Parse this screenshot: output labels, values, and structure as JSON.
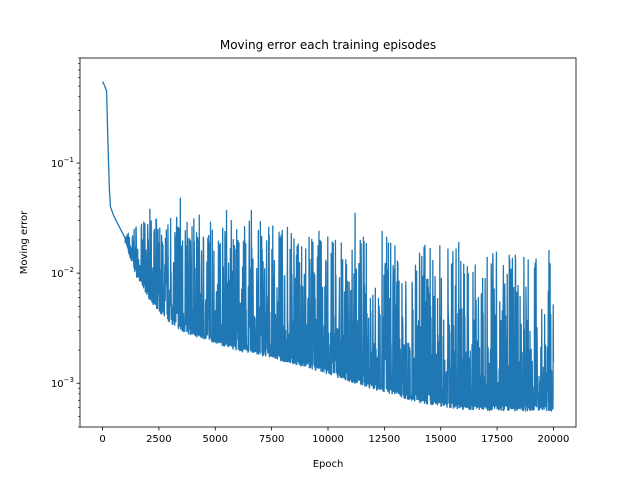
{
  "chart_data": {
    "type": "line",
    "title": "Moving error each training episodes",
    "xlabel": "Epoch",
    "ylabel": "Moving error",
    "y_scale": "log",
    "grid": false,
    "legend": "none",
    "xlim": [
      -1000,
      21000
    ],
    "ylim": [
      0.0004,
      0.9
    ],
    "x_ticks": [
      0,
      2500,
      5000,
      7500,
      10000,
      12500,
      15000,
      17500,
      20000
    ],
    "y_ticks": [
      {
        "value": 0.001,
        "base": "10",
        "exp": "−3"
      },
      {
        "value": 0.01,
        "base": "10",
        "exp": "−2"
      },
      {
        "value": 0.1,
        "base": "10",
        "exp": "−1"
      }
    ],
    "series": [
      {
        "color": "#1f77b4",
        "baseline": [
          [
            0,
            0.55
          ],
          [
            100,
            0.5
          ],
          [
            180,
            0.45
          ],
          [
            230,
            0.18
          ],
          [
            300,
            0.06
          ],
          [
            350,
            0.04
          ],
          [
            500,
            0.033
          ],
          [
            800,
            0.025
          ],
          [
            1000,
            0.02
          ],
          [
            1200,
            0.015
          ],
          [
            1500,
            0.01
          ],
          [
            2000,
            0.0065
          ],
          [
            2500,
            0.0048
          ],
          [
            3000,
            0.0038
          ],
          [
            3500,
            0.0032
          ],
          [
            4000,
            0.0029
          ],
          [
            5000,
            0.0025
          ],
          [
            6000,
            0.0021
          ],
          [
            7000,
            0.0019
          ],
          [
            8000,
            0.0017
          ],
          [
            9000,
            0.0015
          ],
          [
            10000,
            0.0013
          ],
          [
            11000,
            0.0011
          ],
          [
            12000,
            0.00095
          ],
          [
            13000,
            0.00082
          ],
          [
            14000,
            0.00072
          ],
          [
            15000,
            0.00066
          ],
          [
            16000,
            0.00062
          ],
          [
            17000,
            0.00061
          ],
          [
            18000,
            0.0006
          ],
          [
            19000,
            0.0006
          ],
          [
            20000,
            0.0006
          ]
        ],
        "envelope": [
          [
            1000,
            0.022
          ],
          [
            1500,
            0.028
          ],
          [
            2000,
            0.03
          ],
          [
            2500,
            0.032
          ],
          [
            3000,
            0.033
          ],
          [
            3500,
            0.034
          ],
          [
            4000,
            0.034
          ],
          [
            5000,
            0.033
          ],
          [
            6000,
            0.032
          ],
          [
            7000,
            0.03
          ],
          [
            8000,
            0.025
          ],
          [
            9000,
            0.024
          ],
          [
            10000,
            0.023
          ],
          [
            11000,
            0.023
          ],
          [
            12000,
            0.022
          ],
          [
            13000,
            0.021
          ],
          [
            14000,
            0.019
          ],
          [
            15000,
            0.018
          ],
          [
            16000,
            0.017
          ],
          [
            17000,
            0.016
          ],
          [
            18000,
            0.015
          ],
          [
            19000,
            0.014
          ],
          [
            20000,
            0.014
          ]
        ],
        "spikes": [
          [
            3450,
            0.048
          ],
          [
            11200,
            0.035
          ],
          [
            19800,
            0.016
          ],
          [
            2100,
            0.038
          ],
          [
            5500,
            0.037
          ],
          [
            6600,
            0.037
          ],
          [
            8200,
            0.026
          ],
          [
            9600,
            0.024
          ],
          [
            12400,
            0.024
          ],
          [
            15800,
            0.019
          ]
        ]
      }
    ]
  }
}
